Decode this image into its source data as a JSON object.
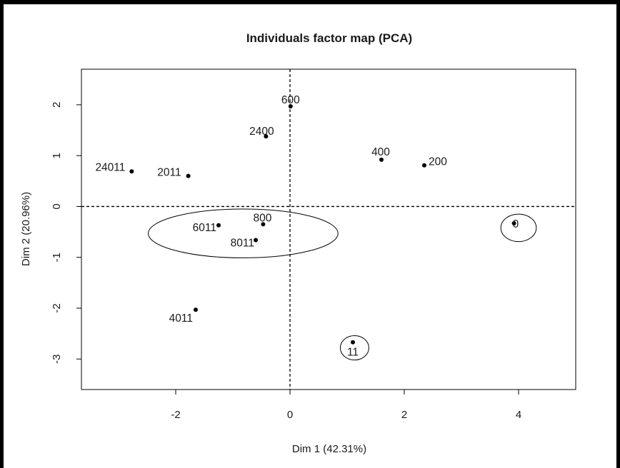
{
  "chart_data": {
    "type": "scatter",
    "title": "Individuals factor map (PCA)",
    "xlabel": "Dim 1 (42.31%)",
    "ylabel": "Dim 2 (20.96%)",
    "xlim": [
      -3.65,
      5.0
    ],
    "ylim": [
      -3.6,
      2.7
    ],
    "xticks": [
      -2,
      0,
      2,
      4
    ],
    "yticks": [
      -3,
      -2,
      -1,
      0,
      1,
      2
    ],
    "reference_lines": {
      "x": 0,
      "y": 0,
      "style": "dashed"
    },
    "grid": false,
    "legend": "none",
    "points": [
      {
        "label": "600",
        "x": 0.01,
        "y": 1.97
      },
      {
        "label": "2400",
        "x": -0.42,
        "y": 1.38
      },
      {
        "label": "400",
        "x": 1.6,
        "y": 0.92
      },
      {
        "label": "200",
        "x": 2.35,
        "y": 0.81
      },
      {
        "label": "24011",
        "x": -2.77,
        "y": 0.69
      },
      {
        "label": "2011",
        "x": -1.78,
        "y": 0.6
      },
      {
        "label": "0",
        "x": 3.92,
        "y": -0.33
      },
      {
        "label": "6011",
        "x": -1.25,
        "y": -0.37
      },
      {
        "label": "800",
        "x": -0.47,
        "y": -0.35
      },
      {
        "label": "8011",
        "x": -0.6,
        "y": -0.66
      },
      {
        "label": "4011",
        "x": -1.65,
        "y": -2.03
      },
      {
        "label": "11",
        "x": 1.1,
        "y": -2.67
      }
    ],
    "annotations": [
      {
        "shape": "ellipse",
        "cx": -0.82,
        "cy": -0.53,
        "rx": 1.66,
        "ry": 0.48
      },
      {
        "shape": "circle",
        "cx": 4.0,
        "cy": -0.42,
        "rx": 0.31,
        "ry": 0.27
      },
      {
        "shape": "circle",
        "cx": 1.13,
        "cy": -2.78,
        "rx": 0.25,
        "ry": 0.24
      }
    ]
  }
}
